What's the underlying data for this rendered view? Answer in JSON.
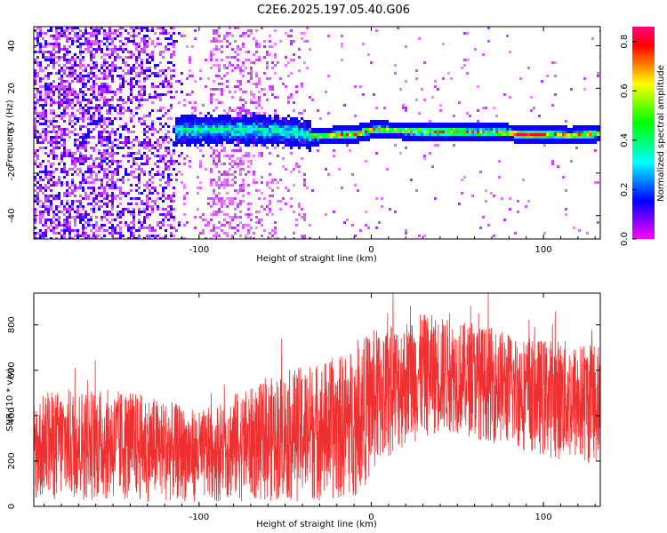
{
  "chart_data": [
    {
      "type": "heatmap",
      "title": "C2E6.2025.197.05.40.G06",
      "xlabel": "Height of straight line (km)",
      "ylabel": "Frequency (Hz)",
      "xlim": [
        -196,
        133
      ],
      "ylim": [
        -51,
        49
      ],
      "x_ticks": [
        -100,
        0,
        100
      ],
      "y_ticks": [
        -40,
        -20,
        0,
        20,
        40
      ],
      "colorbar": {
        "label": "Normalized spectral amplitude",
        "range": [
          0,
          0.86
        ],
        "ticks": [
          0.0,
          0.2,
          0.4,
          0.6,
          0.8
        ],
        "colormap": [
          "#ff00ff",
          "#8000ff",
          "#0000ff",
          "#0080ff",
          "#00ffff",
          "#00ff80",
          "#00ff00",
          "#80ff00",
          "#ffff00",
          "#ff8000",
          "#ff0000",
          "#ff0080"
        ]
      },
      "description_values": {
        "signal_center_frequency_hz": 0,
        "signal_start_height_km": -115,
        "noisy_region_end_height_km": -35
      },
      "series": [
        {
          "x": [
            -115,
            -100,
            -80,
            -60,
            -45,
            -35,
            -25,
            -10,
            0,
            20,
            40,
            60,
            80,
            90,
            100,
            115,
            133
          ],
          "y": [
            0.5,
            0.8,
            1.0,
            0.6,
            -0.5,
            -2.0,
            -1.8,
            -1.0,
            1.0,
            0.5,
            0.2,
            0.0,
            -0.5,
            -1.5,
            -1.2,
            -1.8,
            -0.5
          ]
        }
      ]
    },
    {
      "type": "line",
      "xlabel": "Height of straight line (km)",
      "ylabel": "SNR (10 * v/v)",
      "xlim": [
        -196,
        133
      ],
      "ylim": [
        0,
        940
      ],
      "x_ticks": [
        -100,
        0,
        100
      ],
      "y_ticks": [
        0,
        200,
        400,
        600,
        800
      ],
      "color": "#f03030",
      "series": [
        {
          "name": "upper_envelope",
          "x": [
            -196,
            -180,
            -160,
            -140,
            -120,
            -100,
            -90,
            -80,
            -70,
            -60,
            -50,
            -40,
            -30,
            -20,
            -10,
            0,
            10,
            20,
            30,
            40,
            50,
            60,
            70,
            80,
            90,
            100,
            110,
            120,
            133
          ],
          "y": [
            480,
            520,
            520,
            510,
            470,
            420,
            450,
            500,
            520,
            560,
            600,
            620,
            640,
            660,
            700,
            780,
            800,
            820,
            850,
            840,
            820,
            800,
            790,
            770,
            750,
            740,
            740,
            720,
            740
          ]
        },
        {
          "name": "lower_envelope",
          "x": [
            -196,
            -180,
            -160,
            -140,
            -120,
            -100,
            -90,
            -80,
            -70,
            -60,
            -50,
            -40,
            -30,
            -20,
            -10,
            0,
            10,
            20,
            30,
            40,
            50,
            60,
            70,
            80,
            90,
            100,
            110,
            120,
            133
          ],
          "y": [
            20,
            20,
            20,
            20,
            20,
            20,
            20,
            20,
            20,
            20,
            20,
            20,
            20,
            20,
            40,
            120,
            200,
            260,
            300,
            320,
            320,
            300,
            280,
            260,
            240,
            220,
            200,
            180,
            180
          ]
        }
      ]
    }
  ]
}
